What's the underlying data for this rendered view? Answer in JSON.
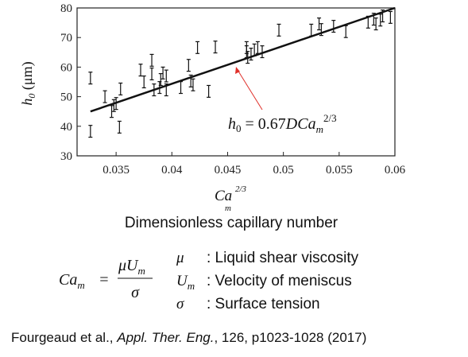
{
  "chart_data": {
    "type": "scatter",
    "xlabel": [
      "Ca",
      "2/3",
      "m"
    ],
    "ylabel": [
      "h",
      "0",
      " (μm)"
    ],
    "annotation": [
      "h",
      "0",
      " = 0.67",
      "DCa",
      "m",
      "2/3"
    ],
    "annotation_color": "#e0302a",
    "xlim": [
      0.0315,
      0.06
    ],
    "xticks": [
      0.035,
      0.04,
      0.045,
      0.05,
      0.055,
      0.06
    ],
    "ylim": [
      30,
      80
    ],
    "yticks": [
      30,
      40,
      50,
      60,
      70,
      80
    ],
    "series": [
      {
        "type": "errorbar",
        "color": "#111",
        "error": 2,
        "x": [
          0.0327,
          0.0327,
          0.034,
          0.0346,
          0.0348,
          0.035,
          0.0354,
          0.0353,
          0.0372,
          0.0375,
          0.0382,
          0.0382,
          0.0384,
          0.0389,
          0.0392,
          0.039,
          0.0395,
          0.0395,
          0.0408,
          0.0415,
          0.0417,
          0.0419,
          0.0423,
          0.0433,
          0.0439,
          0.0467,
          0.0467,
          0.0468,
          0.0471,
          0.0474,
          0.0477,
          0.0481,
          0.0496,
          0.0525,
          0.0532,
          0.0534,
          0.0545,
          0.0556,
          0.0576,
          0.0581,
          0.0583,
          0.0587,
          0.0589,
          0.0596
        ],
        "values": [
          56.3,
          38.3,
          50,
          45,
          47,
          47.7,
          52.6,
          39.7,
          59,
          55,
          62.3,
          57.7,
          52.3,
          53.1,
          58,
          55.8,
          57,
          52.3,
          53.1,
          60.6,
          55.3,
          54,
          66.6,
          51.8,
          66.8,
          66.6,
          65.2,
          63.3,
          64.4,
          65.8,
          66.6,
          65.2,
          72.5,
          72.5,
          74.6,
          72.7,
          73.8,
          72,
          75.2,
          76.2,
          74.6,
          75.9,
          77.3,
          76.8
        ]
      },
      {
        "type": "line",
        "color": "#111",
        "x": [
          0.0327,
          0.06
        ],
        "values": [
          45,
          80
        ]
      }
    ]
  },
  "caption": "Dimensionless capillary number",
  "formula": {
    "lhs": [
      "Ca",
      "m"
    ],
    "equals": "=",
    "numerator": [
      "μU",
      "m"
    ],
    "denominator": "σ"
  },
  "definitions": [
    {
      "symbol": [
        "μ",
        ""
      ],
      "text": ": Liquid shear viscosity"
    },
    {
      "symbol": [
        "U",
        "m"
      ],
      "text": ": Velocity of meniscus"
    },
    {
      "symbol": [
        "σ",
        ""
      ],
      "text": ": Surface tension"
    }
  ],
  "citation": [
    "Fourgeaud  et al., ",
    "Appl. Ther. Eng.",
    ", 126, p1023-1028 (2017)"
  ]
}
